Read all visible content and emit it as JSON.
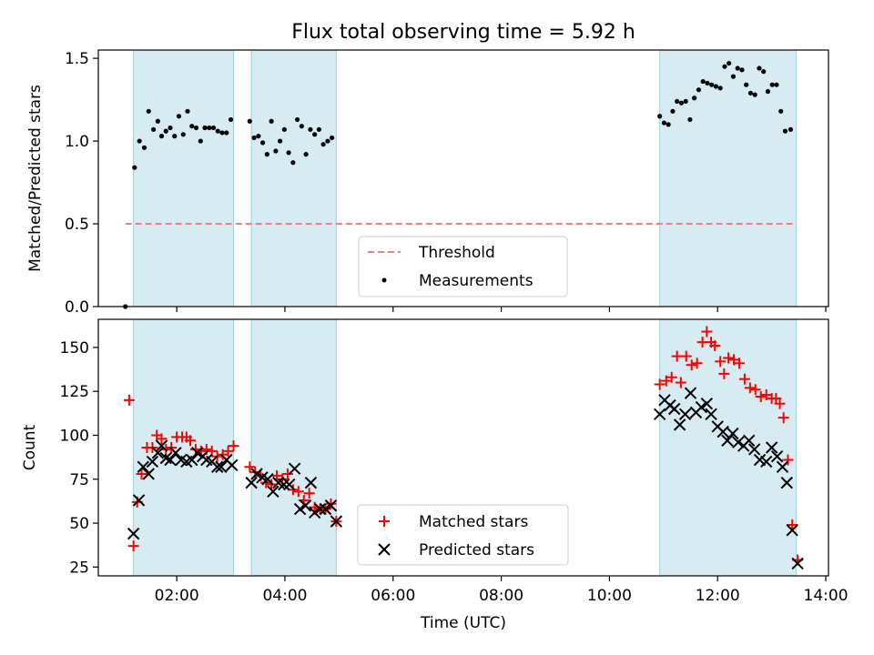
{
  "chart_data": [
    {
      "type": "scatter",
      "title": "Flux total observing time = 5.92 h",
      "xlabel": "",
      "ylabel": "Matched/Predicted stars",
      "xlim": [
        0.55,
        14.05
      ],
      "ylim": [
        0,
        1.55
      ],
      "yticks": [
        0.0,
        0.5,
        1.0,
        1.5
      ],
      "ytick_labels": [
        "0.0",
        "0.5",
        "1.0",
        "1.5"
      ],
      "shaded_intervals": [
        [
          1.2,
          3.05
        ],
        [
          3.38,
          4.95
        ],
        [
          10.93,
          13.45
        ]
      ],
      "threshold": {
        "name": "Threshold",
        "value": 0.5,
        "x_range": [
          1.05,
          13.45
        ],
        "color": "#f08080"
      },
      "legend": {
        "position": "lower-center",
        "entries": [
          "Threshold",
          "Measurements"
        ]
      },
      "series": [
        {
          "name": "Measurements",
          "marker": "dot",
          "color": "#000000",
          "points": [
            [
              1.05,
              0.0
            ],
            [
              1.22,
              0.84
            ],
            [
              1.31,
              1.0
            ],
            [
              1.4,
              0.96
            ],
            [
              1.48,
              1.18
            ],
            [
              1.57,
              1.07
            ],
            [
              1.65,
              1.12
            ],
            [
              1.72,
              1.03
            ],
            [
              1.8,
              1.06
            ],
            [
              1.88,
              1.08
            ],
            [
              1.96,
              1.03
            ],
            [
              2.04,
              1.15
            ],
            [
              2.12,
              1.04
            ],
            [
              2.2,
              1.18
            ],
            [
              2.28,
              1.09
            ],
            [
              2.36,
              1.08
            ],
            [
              2.44,
              1.0
            ],
            [
              2.52,
              1.08
            ],
            [
              2.6,
              1.08
            ],
            [
              2.68,
              1.08
            ],
            [
              2.76,
              1.06
            ],
            [
              2.84,
              1.05
            ],
            [
              2.92,
              1.05
            ],
            [
              3.0,
              1.13
            ],
            [
              3.35,
              1.12
            ],
            [
              3.43,
              1.02
            ],
            [
              3.51,
              1.03
            ],
            [
              3.59,
              0.99
            ],
            [
              3.67,
              0.92
            ],
            [
              3.75,
              1.12
            ],
            [
              3.83,
              0.94
            ],
            [
              3.91,
              1.0
            ],
            [
              3.99,
              1.07
            ],
            [
              4.07,
              0.93
            ],
            [
              4.15,
              0.87
            ],
            [
              4.23,
              1.13
            ],
            [
              4.31,
              1.09
            ],
            [
              4.39,
              0.92
            ],
            [
              4.47,
              1.07
            ],
            [
              4.55,
              1.04
            ],
            [
              4.63,
              1.07
            ],
            [
              4.71,
              0.98
            ],
            [
              4.79,
              1.0
            ],
            [
              4.87,
              1.02
            ],
            [
              10.93,
              1.15
            ],
            [
              11.01,
              1.11
            ],
            [
              11.09,
              1.1
            ],
            [
              11.17,
              1.18
            ],
            [
              11.25,
              1.24
            ],
            [
              11.33,
              1.23
            ],
            [
              11.41,
              1.24
            ],
            [
              11.49,
              1.13
            ],
            [
              11.57,
              1.26
            ],
            [
              11.65,
              1.31
            ],
            [
              11.73,
              1.36
            ],
            [
              11.81,
              1.35
            ],
            [
              11.89,
              1.34
            ],
            [
              11.97,
              1.33
            ],
            [
              12.05,
              1.32
            ],
            [
              12.13,
              1.45
            ],
            [
              12.21,
              1.47
            ],
            [
              12.29,
              1.39
            ],
            [
              12.37,
              1.44
            ],
            [
              12.45,
              1.43
            ],
            [
              12.53,
              1.34
            ],
            [
              12.61,
              1.29
            ],
            [
              12.69,
              1.28
            ],
            [
              12.77,
              1.44
            ],
            [
              12.85,
              1.42
            ],
            [
              12.93,
              1.3
            ],
            [
              13.01,
              1.34
            ],
            [
              13.09,
              1.34
            ],
            [
              13.17,
              1.18
            ],
            [
              13.25,
              1.06
            ],
            [
              13.35,
              1.07
            ]
          ]
        }
      ]
    },
    {
      "type": "scatter",
      "title": "",
      "xlabel": "Time (UTC)",
      "ylabel": "Count",
      "xlim": [
        0.55,
        14.05
      ],
      "ylim": [
        20,
        166
      ],
      "yticks": [
        25,
        50,
        75,
        100,
        125,
        150
      ],
      "ytick_labels": [
        "25",
        "50",
        "75",
        "100",
        "125",
        "150"
      ],
      "xticks": [
        2,
        4,
        6,
        8,
        10,
        12,
        14
      ],
      "xtick_labels": [
        "02:00",
        "04:00",
        "06:00",
        "08:00",
        "10:00",
        "12:00",
        "14:00"
      ],
      "shaded_intervals": [
        [
          1.2,
          3.05
        ],
        [
          3.38,
          4.95
        ],
        [
          10.93,
          13.45
        ]
      ],
      "legend": {
        "position": "lower-center",
        "entries": [
          "Matched stars",
          "Predicted stars"
        ]
      },
      "series": [
        {
          "name": "Matched stars",
          "marker": "plus",
          "color": "#ff0000",
          "points": [
            [
              1.12,
              120
            ],
            [
              1.2,
              37
            ],
            [
              1.27,
              62
            ],
            [
              1.35,
              78
            ],
            [
              1.45,
              93
            ],
            [
              1.55,
              93
            ],
            [
              1.63,
              100
            ],
            [
              1.72,
              98
            ],
            [
              1.8,
              92
            ],
            [
              1.9,
              93
            ],
            [
              2.0,
              99
            ],
            [
              2.1,
              99
            ],
            [
              2.18,
              99
            ],
            [
              2.25,
              97
            ],
            [
              2.35,
              92
            ],
            [
              2.45,
              91
            ],
            [
              2.55,
              92
            ],
            [
              2.65,
              91
            ],
            [
              2.75,
              88
            ],
            [
              2.85,
              89
            ],
            [
              2.95,
              91
            ],
            [
              3.05,
              94
            ],
            [
              3.35,
              82
            ],
            [
              3.45,
              79
            ],
            [
              3.55,
              77
            ],
            [
              3.65,
              73
            ],
            [
              3.75,
              72
            ],
            [
              3.85,
              77
            ],
            [
              3.95,
              75
            ],
            [
              4.05,
              78
            ],
            [
              4.15,
              69
            ],
            [
              4.25,
              68
            ],
            [
              4.35,
              63
            ],
            [
              4.45,
              67
            ],
            [
              4.55,
              59
            ],
            [
              4.65,
              58
            ],
            [
              4.75,
              58
            ],
            [
              4.85,
              61
            ],
            [
              4.95,
              51
            ],
            [
              10.93,
              129
            ],
            [
              11.05,
              131
            ],
            [
              11.15,
              133
            ],
            [
              11.25,
              145
            ],
            [
              11.32,
              130
            ],
            [
              11.42,
              145
            ],
            [
              11.52,
              140
            ],
            [
              11.62,
              141
            ],
            [
              11.72,
              153
            ],
            [
              11.8,
              159
            ],
            [
              11.88,
              153
            ],
            [
              11.95,
              151
            ],
            [
              12.05,
              142
            ],
            [
              12.12,
              135
            ],
            [
              12.2,
              144
            ],
            [
              12.3,
              143
            ],
            [
              12.4,
              141
            ],
            [
              12.5,
              132
            ],
            [
              12.6,
              127
            ],
            [
              12.7,
              126
            ],
            [
              12.8,
              122
            ],
            [
              12.9,
              123
            ],
            [
              13.0,
              121
            ],
            [
              13.08,
              121
            ],
            [
              13.15,
              118
            ],
            [
              13.22,
              110
            ],
            [
              13.3,
              86
            ],
            [
              13.38,
              49
            ],
            [
              13.48,
              29
            ]
          ]
        },
        {
          "name": "Predicted stars",
          "marker": "x",
          "color": "#000000",
          "points": [
            [
              1.2,
              44
            ],
            [
              1.3,
              63
            ],
            [
              1.38,
              82
            ],
            [
              1.48,
              78
            ],
            [
              1.55,
              85
            ],
            [
              1.65,
              90
            ],
            [
              1.72,
              94
            ],
            [
              1.8,
              87
            ],
            [
              1.88,
              86
            ],
            [
              1.98,
              90
            ],
            [
              2.08,
              86
            ],
            [
              2.18,
              85
            ],
            [
              2.28,
              86
            ],
            [
              2.38,
              90
            ],
            [
              2.48,
              88
            ],
            [
              2.55,
              86
            ],
            [
              2.65,
              85
            ],
            [
              2.75,
              82
            ],
            [
              2.82,
              82
            ],
            [
              2.92,
              86
            ],
            [
              3.02,
              83
            ],
            [
              3.38,
              73
            ],
            [
              3.48,
              78
            ],
            [
              3.58,
              76
            ],
            [
              3.68,
              75
            ],
            [
              3.78,
              68
            ],
            [
              3.88,
              73
            ],
            [
              3.98,
              72
            ],
            [
              4.08,
              72
            ],
            [
              4.18,
              81
            ],
            [
              4.28,
              58
            ],
            [
              4.38,
              60
            ],
            [
              4.48,
              73
            ],
            [
              4.55,
              56
            ],
            [
              4.65,
              58
            ],
            [
              4.75,
              58
            ],
            [
              4.85,
              60
            ],
            [
              4.95,
              51
            ],
            [
              10.93,
              112
            ],
            [
              11.02,
              120
            ],
            [
              11.12,
              117
            ],
            [
              11.2,
              115
            ],
            [
              11.3,
              106
            ],
            [
              11.4,
              112
            ],
            [
              11.5,
              124
            ],
            [
              11.6,
              113
            ],
            [
              11.7,
              116
            ],
            [
              11.8,
              118
            ],
            [
              11.88,
              112
            ],
            [
              12.0,
              105
            ],
            [
              12.1,
              102
            ],
            [
              12.18,
              97
            ],
            [
              12.28,
              101
            ],
            [
              12.38,
              96
            ],
            [
              12.48,
              94
            ],
            [
              12.58,
              97
            ],
            [
              12.68,
              92
            ],
            [
              12.78,
              86
            ],
            [
              12.9,
              85
            ],
            [
              13.0,
              93
            ],
            [
              13.1,
              88
            ],
            [
              13.2,
              82
            ],
            [
              13.28,
              73
            ],
            [
              13.38,
              46
            ],
            [
              13.48,
              27
            ]
          ]
        }
      ]
    }
  ]
}
